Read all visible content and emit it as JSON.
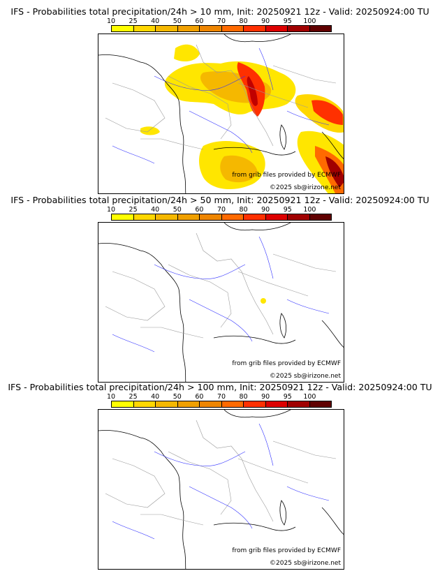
{
  "colorbar": {
    "ticks": [
      "10",
      "25",
      "40",
      "50",
      "60",
      "70",
      "80",
      "90",
      "95",
      "100"
    ],
    "colors": [
      "#ffff00",
      "#ffd700",
      "#f5b800",
      "#f0a000",
      "#ee8500",
      "#ff6a00",
      "#ff3000",
      "#dd0000",
      "#a00000",
      "#600000"
    ]
  },
  "panels": [
    {
      "title": "IFS - Probabilities total precipitation/24h > 10 mm, Init: 20250921 12z - Valid: 20250924:00 TU",
      "credit_source": "from grib files provided by ECMWF",
      "credit_copyright": "©2025 sb@irizone.net"
    },
    {
      "title": "IFS - Probabilities total precipitation/24h > 50 mm, Init: 20250921 12z - Valid: 20250924:00 TU",
      "credit_source": "from grib files provided by ECMWF",
      "credit_copyright": "©2025 sb@irizone.net"
    },
    {
      "title": "IFS - Probabilities total precipitation/24h > 100 mm, Init: 20250921 12z - Valid: 20250924:00 TU",
      "credit_source": "from grib files provided by ECMWF",
      "credit_copyright": "©2025 sb@irizone.net"
    }
  ],
  "colors": {
    "coastline": "#000000",
    "borders": "#9a9a9a",
    "rivers": "#3030ff"
  }
}
